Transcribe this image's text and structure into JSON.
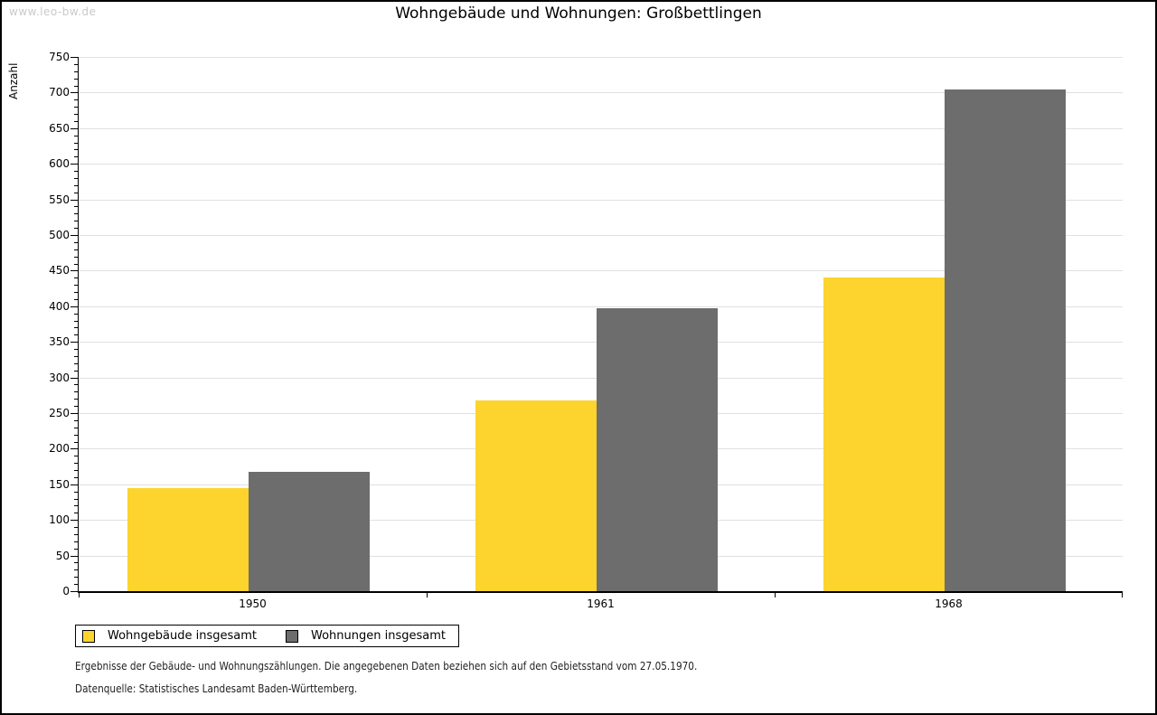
{
  "watermark": "www.leo-bw.de",
  "title": "Wohngebäude und Wohnungen: Großbettlingen",
  "chart_data": {
    "type": "bar",
    "categories": [
      "1950",
      "1961",
      "1968"
    ],
    "series": [
      {
        "name": "Wohngebäude insgesamt",
        "color": "#fcd42d",
        "values": [
          145,
          268,
          440
        ]
      },
      {
        "name": "Wohnungen insgesamt",
        "color": "#6d6d6d",
        "values": [
          168,
          397,
          704
        ]
      }
    ],
    "title": "Wohngebäude und Wohnungen: Großbettlingen",
    "xlabel": "",
    "ylabel": "Anzahl",
    "ylim": [
      0,
      750
    ],
    "ytick_step": 50,
    "yminor_step": 10,
    "grid": true,
    "gridline_color": "#e0e0e0",
    "legend_position": "bottom-left"
  },
  "footer": {
    "line1": "Ergebnisse der Gebäude- und Wohnungszählungen. Die angegebenen Daten beziehen sich auf den Gebietsstand vom 27.05.1970.",
    "line2": "Datenquelle: Statistisches Landesamt Baden-Württemberg."
  }
}
